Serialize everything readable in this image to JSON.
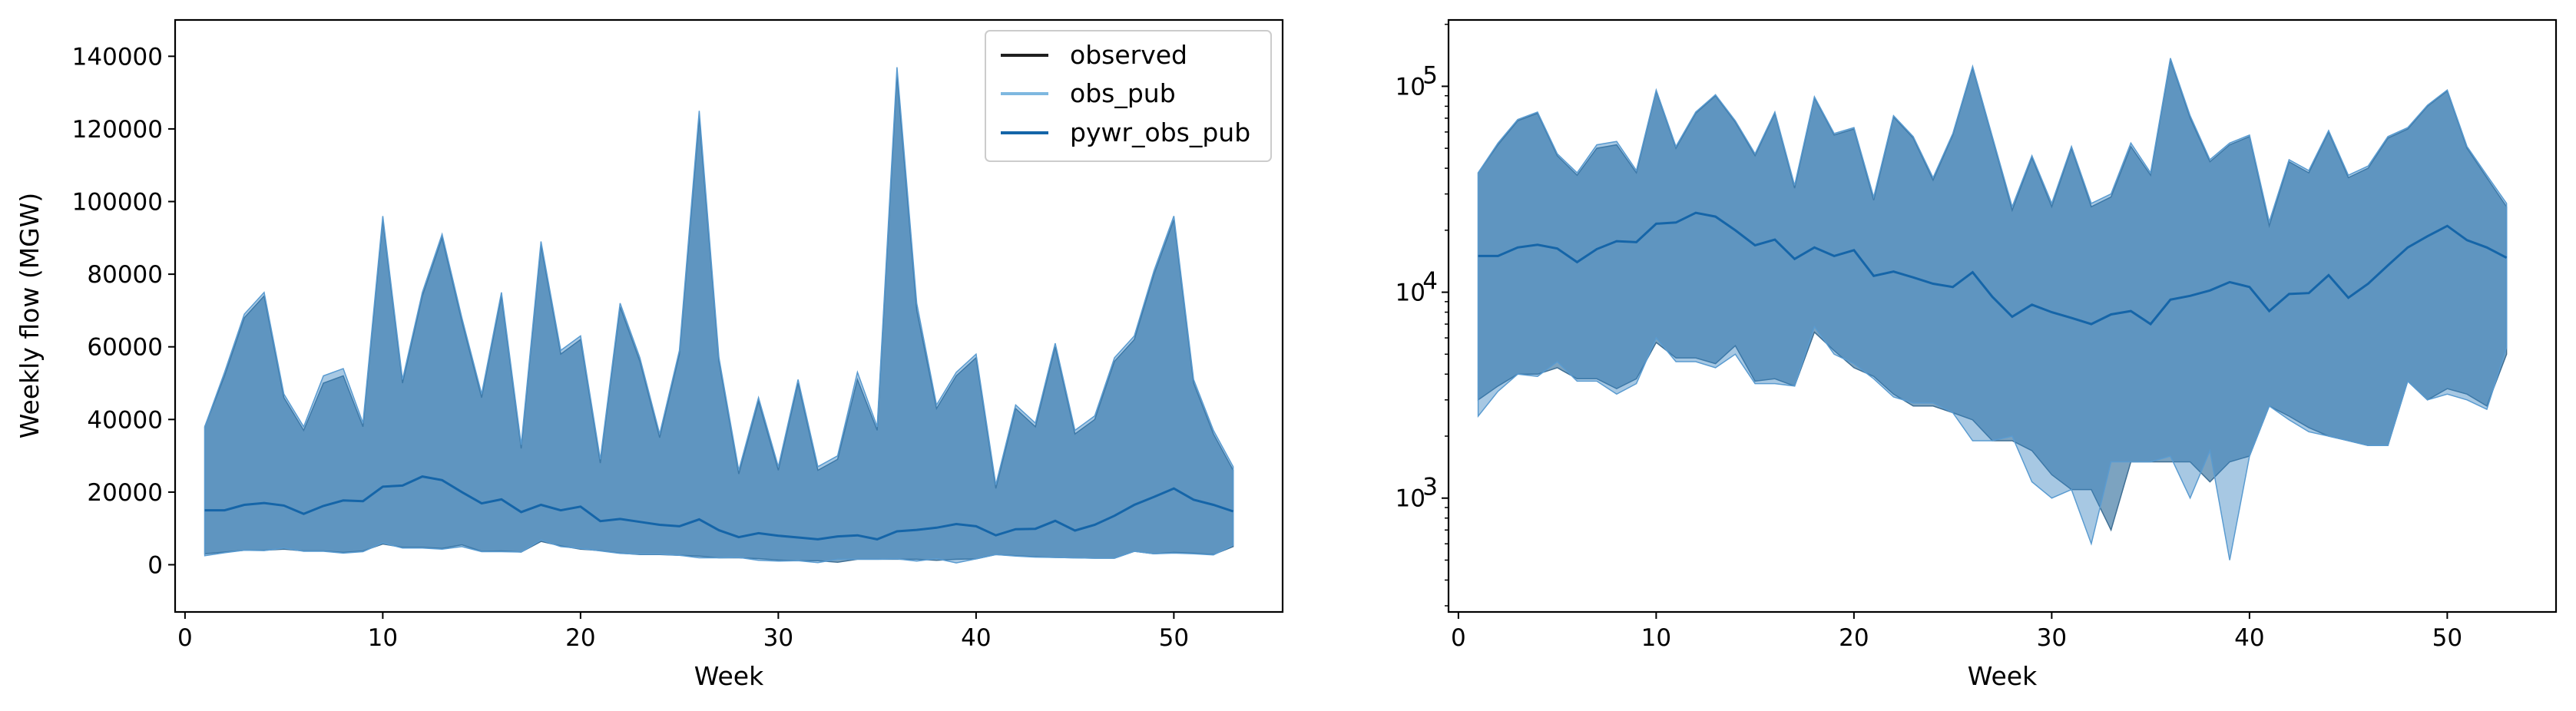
{
  "chart_data": [
    {
      "type": "area",
      "xlabel": "Week",
      "ylabel": "Weekly flow (MGW)",
      "yscale": "linear",
      "xlim": [
        -0.5,
        55.5
      ],
      "ylim": [
        -13000,
        150000
      ],
      "xticks": [
        "0",
        "10",
        "20",
        "30",
        "40",
        "50"
      ],
      "yticks": [
        "0",
        "20000",
        "40000",
        "60000",
        "80000",
        "100000",
        "120000",
        "140000"
      ],
      "grid": false,
      "legend": {
        "position": "top-right",
        "entries": [
          "observed",
          "obs_pub",
          "pywr_obs_pub"
        ]
      },
      "x": [
        1,
        2,
        3,
        4,
        5,
        6,
        7,
        8,
        9,
        10,
        11,
        12,
        13,
        14,
        15,
        16,
        17,
        18,
        19,
        20,
        21,
        22,
        23,
        24,
        25,
        26,
        27,
        28,
        29,
        30,
        31,
        32,
        33,
        34,
        35,
        36,
        37,
        38,
        39,
        40,
        41,
        42,
        43,
        44,
        45,
        46,
        47,
        48,
        49,
        50,
        51,
        52,
        53
      ],
      "series": [
        {
          "name": "observed",
          "kind": "band",
          "color": "#1f1f1f",
          "upper": [
            38000,
            52000,
            68000,
            74000,
            46000,
            37000,
            50000,
            52000,
            38000,
            95000,
            50000,
            74000,
            90000,
            67000,
            46000,
            74000,
            32000,
            88000,
            58000,
            62000,
            28000,
            71000,
            56000,
            35000,
            58000,
            123000,
            56000,
            25000,
            45000,
            26000,
            50000,
            26000,
            29000,
            51000,
            37000,
            135000,
            70000,
            43000,
            52000,
            57000,
            21000,
            43000,
            38000,
            60000,
            36000,
            40000,
            56000,
            62000,
            80000,
            95000,
            50000,
            36000,
            26000
          ],
          "lower": [
            3000,
            3500,
            4000,
            4000,
            4300,
            3800,
            3800,
            3400,
            3800,
            5700,
            4800,
            4800,
            4500,
            5500,
            3700,
            3800,
            3500,
            6400,
            5200,
            4300,
            3900,
            3200,
            2800,
            2800,
            2600,
            2400,
            1900,
            1900,
            1700,
            1300,
            1100,
            1100,
            700,
            1500,
            1500,
            1500,
            1500,
            1200,
            1500,
            1600,
            2800,
            2500,
            2200,
            2000,
            1900,
            1800,
            1800,
            3700,
            3000,
            3400,
            3200,
            2800,
            5000
          ]
        },
        {
          "name": "obs_pub",
          "kind": "band",
          "color": "#7eb8e0",
          "upper": [
            38000,
            53000,
            69000,
            75000,
            47000,
            38000,
            52000,
            54000,
            39000,
            96000,
            51000,
            75000,
            91000,
            68000,
            47000,
            75000,
            33000,
            89000,
            59000,
            63000,
            29000,
            72000,
            57000,
            36000,
            59000,
            125000,
            57000,
            26000,
            46000,
            27000,
            51000,
            27000,
            30000,
            53000,
            38000,
            137000,
            72000,
            44000,
            53000,
            58000,
            22000,
            44000,
            39000,
            61000,
            37000,
            41000,
            57000,
            63000,
            81000,
            96000,
            51000,
            37000,
            27000
          ],
          "lower": [
            2500,
            3300,
            4000,
            3900,
            4600,
            3700,
            3700,
            3200,
            3600,
            6000,
            4600,
            4600,
            4300,
            5000,
            3600,
            3600,
            3500,
            6800,
            5000,
            4500,
            3800,
            3100,
            2900,
            2900,
            2600,
            1900,
            1900,
            2000,
            1200,
            1000,
            1100,
            600,
            1500,
            1500,
            1500,
            1600,
            1000,
            1700,
            500,
            1600,
            2800,
            2400,
            2100,
            2000,
            1900,
            1800,
            1800,
            3700,
            3000,
            3200,
            3000,
            2700,
            5400
          ]
        },
        {
          "name": "pywr_obs_pub",
          "kind": "line",
          "color": "#1565a8",
          "values": [
            15000,
            15000,
            16500,
            17000,
            16300,
            14000,
            16200,
            17700,
            17500,
            21500,
            21800,
            24300,
            23300,
            20000,
            16900,
            18000,
            14500,
            16500,
            15000,
            16000,
            12000,
            12600,
            11800,
            11000,
            10600,
            12500,
            9500,
            7600,
            8700,
            8000,
            7500,
            7000,
            7800,
            8100,
            7000,
            9200,
            9600,
            10200,
            11200,
            10600,
            8100,
            9800,
            9900,
            12100,
            9400,
            11000,
            13500,
            16500,
            18700,
            21000,
            17900,
            16500,
            14700
          ]
        }
      ]
    },
    {
      "type": "area",
      "xlabel": "Week",
      "ylabel": "",
      "yscale": "log",
      "xlim": [
        -0.5,
        55.5
      ],
      "ylim": [
        280,
        210000
      ],
      "xticks": [
        "0",
        "10",
        "20",
        "30",
        "40",
        "50"
      ],
      "ytick_values": [
        1000,
        10000,
        100000
      ],
      "ytick_bases": [
        "10",
        "10",
        "10"
      ],
      "ytick_exponents": [
        "3",
        "4",
        "5"
      ],
      "grid": false,
      "legend": null,
      "x": [
        1,
        2,
        3,
        4,
        5,
        6,
        7,
        8,
        9,
        10,
        11,
        12,
        13,
        14,
        15,
        16,
        17,
        18,
        19,
        20,
        21,
        22,
        23,
        24,
        25,
        26,
        27,
        28,
        29,
        30,
        31,
        32,
        33,
        34,
        35,
        36,
        37,
        38,
        39,
        40,
        41,
        42,
        43,
        44,
        45,
        46,
        47,
        48,
        49,
        50,
        51,
        52,
        53
      ],
      "series": [
        {
          "name": "observed",
          "kind": "band",
          "color": "#1f1f1f",
          "upper": [
            38000,
            52000,
            68000,
            74000,
            46000,
            37000,
            50000,
            52000,
            38000,
            95000,
            50000,
            74000,
            90000,
            67000,
            46000,
            74000,
            32000,
            88000,
            58000,
            62000,
            28000,
            71000,
            56000,
            35000,
            58000,
            123000,
            56000,
            25000,
            45000,
            26000,
            50000,
            26000,
            29000,
            51000,
            37000,
            135000,
            70000,
            43000,
            52000,
            57000,
            21000,
            43000,
            38000,
            60000,
            36000,
            40000,
            56000,
            62000,
            80000,
            95000,
            50000,
            36000,
            26000
          ],
          "lower": [
            3000,
            3500,
            4000,
            4000,
            4300,
            3800,
            3800,
            3400,
            3800,
            5700,
            4800,
            4800,
            4500,
            5500,
            3700,
            3800,
            3500,
            6400,
            5200,
            4300,
            3900,
            3200,
            2800,
            2800,
            2600,
            2400,
            1900,
            1900,
            1700,
            1300,
            1100,
            1100,
            700,
            1500,
            1500,
            1500,
            1500,
            1200,
            1500,
            1600,
            2800,
            2500,
            2200,
            2000,
            1900,
            1800,
            1800,
            3700,
            3000,
            3400,
            3200,
            2800,
            5000
          ]
        },
        {
          "name": "obs_pub",
          "kind": "band",
          "color": "#7eb8e0",
          "upper": [
            38000,
            53000,
            69000,
            75000,
            47000,
            38000,
            52000,
            54000,
            39000,
            96000,
            51000,
            75000,
            91000,
            68000,
            47000,
            75000,
            33000,
            89000,
            59000,
            63000,
            29000,
            72000,
            57000,
            36000,
            59000,
            125000,
            57000,
            26000,
            46000,
            27000,
            51000,
            27000,
            30000,
            53000,
            38000,
            137000,
            72000,
            44000,
            53000,
            58000,
            22000,
            44000,
            39000,
            61000,
            37000,
            41000,
            57000,
            63000,
            81000,
            96000,
            51000,
            37000,
            27000
          ],
          "lower": [
            2500,
            3300,
            4000,
            3900,
            4600,
            3700,
            3700,
            3200,
            3600,
            6000,
            4600,
            4600,
            4300,
            5000,
            3600,
            3600,
            3500,
            6800,
            5000,
            4500,
            3800,
            3100,
            2900,
            2900,
            2600,
            1900,
            1900,
            2000,
            1200,
            1000,
            1100,
            600,
            1500,
            1500,
            1500,
            1600,
            1000,
            1700,
            500,
            1600,
            2800,
            2400,
            2100,
            2000,
            1900,
            1800,
            1800,
            3700,
            3000,
            3200,
            3000,
            2700,
            5400
          ]
        },
        {
          "name": "pywr_obs_pub",
          "kind": "line",
          "color": "#1565a8",
          "values": [
            15000,
            15000,
            16500,
            17000,
            16300,
            14000,
            16200,
            17700,
            17500,
            21500,
            21800,
            24300,
            23300,
            20000,
            16900,
            18000,
            14500,
            16500,
            15000,
            16000,
            12000,
            12600,
            11800,
            11000,
            10600,
            12500,
            9500,
            7600,
            8700,
            8000,
            7500,
            7000,
            7800,
            8100,
            7000,
            9200,
            9600,
            10200,
            11200,
            10600,
            8100,
            9800,
            9900,
            12100,
            9400,
            11000,
            13500,
            16500,
            18700,
            21000,
            17900,
            16500,
            14700
          ]
        }
      ]
    }
  ]
}
